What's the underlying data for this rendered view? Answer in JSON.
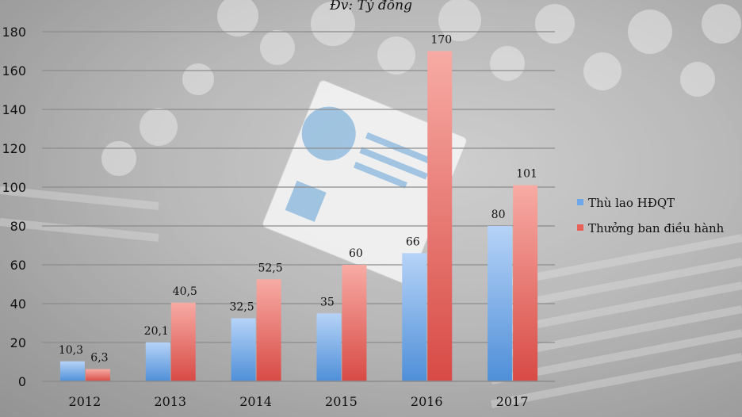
{
  "chart_data": {
    "type": "bar",
    "title": "Đv: Tỷ đồng",
    "categories": [
      "2012",
      "2013",
      "2014",
      "2015",
      "2016",
      "2017"
    ],
    "series": [
      {
        "name": "Thù lao HĐQT",
        "values": [
          10.3,
          20.1,
          32.5,
          35,
          66,
          80
        ],
        "labels": [
          "10,3",
          "20,1",
          "32,5",
          "35",
          "66",
          "80"
        ],
        "color": "#6fa8e8"
      },
      {
        "name": "Thưởng ban điều  hành",
        "values": [
          6.3,
          40.5,
          52.5,
          60,
          170,
          101
        ],
        "labels": [
          "6,3",
          "40,5",
          "52,5",
          "60",
          "170",
          "101"
        ],
        "color": "#e8605a"
      }
    ],
    "ylim": [
      0,
      180
    ],
    "yticks": [
      "0",
      "20",
      "40",
      "60",
      "80",
      "100",
      "120",
      "140",
      "160",
      "180"
    ],
    "grid": true,
    "legend": "right"
  }
}
